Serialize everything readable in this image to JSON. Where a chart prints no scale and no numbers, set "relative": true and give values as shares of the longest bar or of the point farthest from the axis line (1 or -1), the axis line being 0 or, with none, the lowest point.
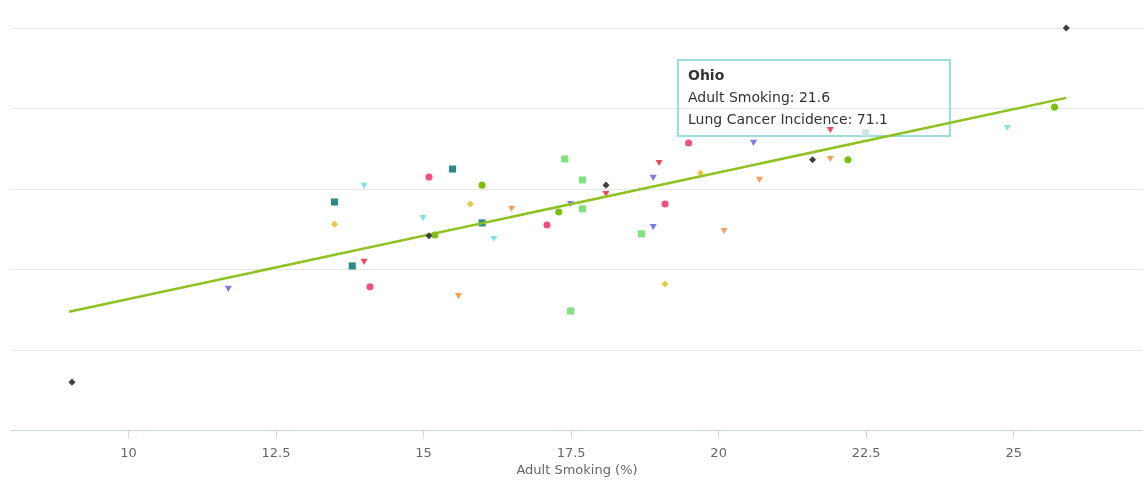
{
  "chart_data": {
    "type": "scatter",
    "xlabel": "Adult Smoking (%)",
    "relative": true,
    "xlim": [
      8,
      27.2
    ],
    "xticks": [
      10,
      12.5,
      15,
      17.5,
      20,
      22.5,
      25
    ],
    "grid": "y",
    "tick_labels": "x",
    "annotations": [
      "Ohio",
      "Adult Smoking: 21.6",
      "Lung Cancer Incidence: 71.1"
    ],
    "series": [
      {
        "marker": "diamond",
        "color": "#404040",
        "x": [
          9.05,
          15.1,
          18.1,
          21.6,
          25.9
        ],
        "values": [
          0.119,
          0.483,
          0.609,
          0.672,
          1.0
        ]
      },
      {
        "marker": "triangle",
        "color": "#7b7bea",
        "x": [
          11.7,
          17.5,
          18.9,
          18.9,
          20.6
        ],
        "values": [
          0.351,
          0.562,
          0.627,
          0.505,
          0.714
        ]
      },
      {
        "marker": "square",
        "color": "#2a8a8a",
        "x": [
          13.5,
          15.5,
          13.8,
          16.0
        ],
        "values": [
          0.567,
          0.649,
          0.408,
          0.515
        ]
      },
      {
        "marker": "triangle",
        "color": "#7de3e3",
        "x": [
          14.0,
          15.0,
          16.2,
          24.9
        ],
        "values": [
          0.607,
          0.527,
          0.475,
          0.751
        ]
      },
      {
        "marker": "square",
        "color": "#c8e6e6",
        "x": [
          22.5
        ],
        "values": [
          0.739
        ]
      },
      {
        "marker": "circle",
        "color": "#f0507a",
        "x": [
          15.1,
          14.1,
          17.1,
          19.1,
          19.5
        ],
        "values": [
          0.629,
          0.356,
          0.51,
          0.562,
          0.714
        ]
      },
      {
        "marker": "diamond",
        "color": "#e8c840",
        "x": [
          13.5,
          15.8,
          19.1,
          19.7
        ],
        "values": [
          0.512,
          0.562,
          0.363,
          0.639
        ]
      },
      {
        "marker": "triangle",
        "color": "#f5a05a",
        "x": [
          16.5,
          15.6,
          20.1,
          20.7,
          21.9
        ],
        "values": [
          0.55,
          0.333,
          0.495,
          0.622,
          0.674
        ]
      },
      {
        "marker": "square",
        "color": "#7de37d",
        "x": [
          17.4,
          17.7,
          17.7,
          18.7,
          17.5
        ],
        "values": [
          0.674,
          0.622,
          0.55,
          0.488,
          0.296
        ]
      },
      {
        "marker": "circle",
        "color": "#7cbf0c",
        "x": [
          16.0,
          15.2,
          17.3,
          22.2,
          25.7
        ],
        "values": [
          0.609,
          0.485,
          0.542,
          0.672,
          0.803
        ]
      },
      {
        "marker": "triangle",
        "color": "#e84a5a",
        "x": [
          14.0,
          18.1,
          19.0,
          21.9
        ],
        "values": [
          0.418,
          0.587,
          0.664,
          0.746
        ]
      },
      {
        "type": "line",
        "color": "#8dc21f",
        "x": [
          9.0,
          25.9
        ],
        "values": [
          0.294,
          0.826
        ]
      }
    ]
  }
}
